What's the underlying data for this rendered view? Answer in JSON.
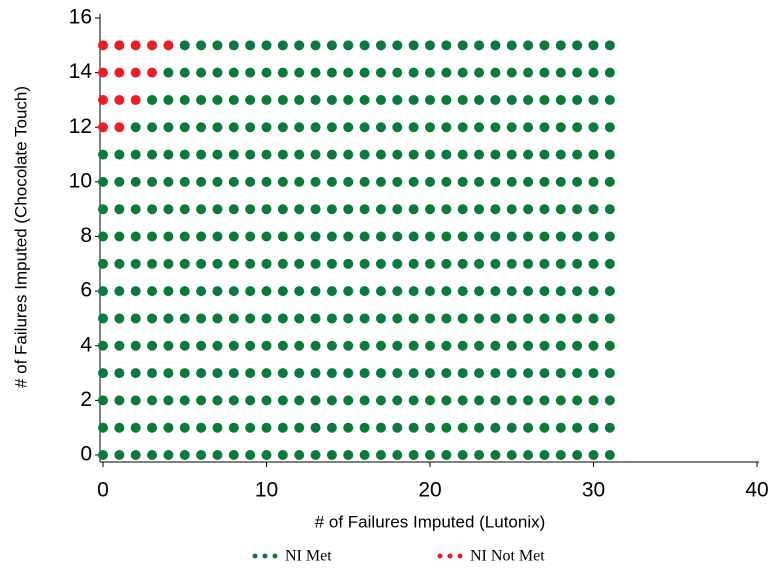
{
  "chart_data": {
    "type": "scatter",
    "x_label": "# of Failures Imputed (Lutonix)",
    "y_label": "# of Failures Imputed (Chocolate Touch)",
    "xlim": [
      0,
      40
    ],
    "xticks": [
      0,
      10,
      20,
      30,
      40
    ],
    "ylim": [
      0,
      16
    ],
    "yticks": [
      0,
      2,
      4,
      6,
      8,
      10,
      12,
      14,
      16
    ],
    "series": [
      {
        "name": "NI Met",
        "color": "#0a7a3c",
        "x": [
          0,
          1,
          2,
          3,
          4,
          5,
          6,
          7,
          8,
          9,
          10,
          11,
          12,
          13,
          14,
          15,
          16,
          17,
          18,
          19,
          20,
          21,
          22,
          23,
          24,
          25,
          26,
          27,
          28,
          29,
          30,
          31,
          0,
          1,
          2,
          3,
          4,
          5,
          6,
          7,
          8,
          9,
          10,
          11,
          12,
          13,
          14,
          15,
          16,
          17,
          18,
          19,
          20,
          21,
          22,
          23,
          24,
          25,
          26,
          27,
          28,
          29,
          30,
          31,
          0,
          1,
          2,
          3,
          4,
          5,
          6,
          7,
          8,
          9,
          10,
          11,
          12,
          13,
          14,
          15,
          16,
          17,
          18,
          19,
          20,
          21,
          22,
          23,
          24,
          25,
          26,
          27,
          28,
          29,
          30,
          31,
          0,
          1,
          2,
          3,
          4,
          5,
          6,
          7,
          8,
          9,
          10,
          11,
          12,
          13,
          14,
          15,
          16,
          17,
          18,
          19,
          20,
          21,
          22,
          23,
          24,
          25,
          26,
          27,
          28,
          29,
          30,
          31,
          0,
          1,
          2,
          3,
          4,
          5,
          6,
          7,
          8,
          9,
          10,
          11,
          12,
          13,
          14,
          15,
          16,
          17,
          18,
          19,
          20,
          21,
          22,
          23,
          24,
          25,
          26,
          27,
          28,
          29,
          30,
          31,
          0,
          1,
          2,
          3,
          4,
          5,
          6,
          7,
          8,
          9,
          10,
          11,
          12,
          13,
          14,
          15,
          16,
          17,
          18,
          19,
          20,
          21,
          22,
          23,
          24,
          25,
          26,
          27,
          28,
          29,
          30,
          31,
          0,
          1,
          2,
          3,
          4,
          5,
          6,
          7,
          8,
          9,
          10,
          11,
          12,
          13,
          14,
          15,
          16,
          17,
          18,
          19,
          20,
          21,
          22,
          23,
          24,
          25,
          26,
          27,
          28,
          29,
          30,
          31,
          0,
          1,
          2,
          3,
          4,
          5,
          6,
          7,
          8,
          9,
          10,
          11,
          12,
          13,
          14,
          15,
          16,
          17,
          18,
          19,
          20,
          21,
          22,
          23,
          24,
          25,
          26,
          27,
          28,
          29,
          30,
          31,
          0,
          1,
          2,
          3,
          4,
          5,
          6,
          7,
          8,
          9,
          10,
          11,
          12,
          13,
          14,
          15,
          16,
          17,
          18,
          19,
          20,
          21,
          22,
          23,
          24,
          25,
          26,
          27,
          28,
          29,
          30,
          31,
          0,
          1,
          2,
          3,
          4,
          5,
          6,
          7,
          8,
          9,
          10,
          11,
          12,
          13,
          14,
          15,
          16,
          17,
          18,
          19,
          20,
          21,
          22,
          23,
          24,
          25,
          26,
          27,
          28,
          29,
          30,
          31,
          0,
          1,
          2,
          3,
          4,
          5,
          6,
          7,
          8,
          9,
          10,
          11,
          12,
          13,
          14,
          15,
          16,
          17,
          18,
          19,
          20,
          21,
          22,
          23,
          24,
          25,
          26,
          27,
          28,
          29,
          30,
          31,
          0,
          1,
          2,
          3,
          4,
          5,
          6,
          7,
          8,
          9,
          10,
          11,
          12,
          13,
          14,
          15,
          16,
          17,
          18,
          19,
          20,
          21,
          22,
          23,
          24,
          25,
          26,
          27,
          28,
          29,
          30,
          31,
          2,
          3,
          4,
          5,
          6,
          7,
          8,
          9,
          10,
          11,
          12,
          13,
          14,
          15,
          16,
          17,
          18,
          19,
          20,
          21,
          22,
          23,
          24,
          25,
          26,
          27,
          28,
          29,
          30,
          31,
          3,
          4,
          5,
          6,
          7,
          8,
          9,
          10,
          11,
          12,
          13,
          14,
          15,
          16,
          17,
          18,
          19,
          20,
          21,
          22,
          23,
          24,
          25,
          26,
          27,
          28,
          29,
          30,
          31,
          4,
          5,
          6,
          7,
          8,
          9,
          10,
          11,
          12,
          13,
          14,
          15,
          16,
          17,
          18,
          19,
          20,
          21,
          22,
          23,
          24,
          25,
          26,
          27,
          28,
          29,
          30,
          31,
          5,
          6,
          7,
          8,
          9,
          10,
          11,
          12,
          13,
          14,
          15,
          16,
          17,
          18,
          19,
          20,
          21,
          22,
          23,
          24,
          25,
          26,
          27,
          28,
          29,
          30,
          31
        ],
        "y": [
          0,
          0,
          0,
          0,
          0,
          0,
          0,
          0,
          0,
          0,
          0,
          0,
          0,
          0,
          0,
          0,
          0,
          0,
          0,
          0,
          0,
          0,
          0,
          0,
          0,
          0,
          0,
          0,
          0,
          0,
          0,
          0,
          1,
          1,
          1,
          1,
          1,
          1,
          1,
          1,
          1,
          1,
          1,
          1,
          1,
          1,
          1,
          1,
          1,
          1,
          1,
          1,
          1,
          1,
          1,
          1,
          1,
          1,
          1,
          1,
          1,
          1,
          1,
          1,
          2,
          2,
          2,
          2,
          2,
          2,
          2,
          2,
          2,
          2,
          2,
          2,
          2,
          2,
          2,
          2,
          2,
          2,
          2,
          2,
          2,
          2,
          2,
          2,
          2,
          2,
          2,
          2,
          2,
          2,
          2,
          2,
          3,
          3,
          3,
          3,
          3,
          3,
          3,
          3,
          3,
          3,
          3,
          3,
          3,
          3,
          3,
          3,
          3,
          3,
          3,
          3,
          3,
          3,
          3,
          3,
          3,
          3,
          3,
          3,
          3,
          3,
          3,
          3,
          4,
          4,
          4,
          4,
          4,
          4,
          4,
          4,
          4,
          4,
          4,
          4,
          4,
          4,
          4,
          4,
          4,
          4,
          4,
          4,
          4,
          4,
          4,
          4,
          4,
          4,
          4,
          4,
          4,
          4,
          4,
          4,
          5,
          5,
          5,
          5,
          5,
          5,
          5,
          5,
          5,
          5,
          5,
          5,
          5,
          5,
          5,
          5,
          5,
          5,
          5,
          5,
          5,
          5,
          5,
          5,
          5,
          5,
          5,
          5,
          5,
          5,
          5,
          5,
          6,
          6,
          6,
          6,
          6,
          6,
          6,
          6,
          6,
          6,
          6,
          6,
          6,
          6,
          6,
          6,
          6,
          6,
          6,
          6,
          6,
          6,
          6,
          6,
          6,
          6,
          6,
          6,
          6,
          6,
          6,
          6,
          7,
          7,
          7,
          7,
          7,
          7,
          7,
          7,
          7,
          7,
          7,
          7,
          7,
          7,
          7,
          7,
          7,
          7,
          7,
          7,
          7,
          7,
          7,
          7,
          7,
          7,
          7,
          7,
          7,
          7,
          7,
          7,
          8,
          8,
          8,
          8,
          8,
          8,
          8,
          8,
          8,
          8,
          8,
          8,
          8,
          8,
          8,
          8,
          8,
          8,
          8,
          8,
          8,
          8,
          8,
          8,
          8,
          8,
          8,
          8,
          8,
          8,
          8,
          8,
          9,
          9,
          9,
          9,
          9,
          9,
          9,
          9,
          9,
          9,
          9,
          9,
          9,
          9,
          9,
          9,
          9,
          9,
          9,
          9,
          9,
          9,
          9,
          9,
          9,
          9,
          9,
          9,
          9,
          9,
          9,
          9,
          10,
          10,
          10,
          10,
          10,
          10,
          10,
          10,
          10,
          10,
          10,
          10,
          10,
          10,
          10,
          10,
          10,
          10,
          10,
          10,
          10,
          10,
          10,
          10,
          10,
          10,
          10,
          10,
          10,
          10,
          10,
          10,
          11,
          11,
          11,
          11,
          11,
          11,
          11,
          11,
          11,
          11,
          11,
          11,
          11,
          11,
          11,
          11,
          11,
          11,
          11,
          11,
          11,
          11,
          11,
          11,
          11,
          11,
          11,
          11,
          11,
          11,
          11,
          11,
          12,
          12,
          12,
          12,
          12,
          12,
          12,
          12,
          12,
          12,
          12,
          12,
          12,
          12,
          12,
          12,
          12,
          12,
          12,
          12,
          12,
          12,
          12,
          12,
          12,
          12,
          12,
          12,
          12,
          12,
          13,
          13,
          13,
          13,
          13,
          13,
          13,
          13,
          13,
          13,
          13,
          13,
          13,
          13,
          13,
          13,
          13,
          13,
          13,
          13,
          13,
          13,
          13,
          13,
          13,
          13,
          13,
          13,
          13,
          14,
          14,
          14,
          14,
          14,
          14,
          14,
          14,
          14,
          14,
          14,
          14,
          14,
          14,
          14,
          14,
          14,
          14,
          14,
          14,
          14,
          14,
          14,
          14,
          14,
          14,
          14,
          14,
          15,
          15,
          15,
          15,
          15,
          15,
          15,
          15,
          15,
          15,
          15,
          15,
          15,
          15,
          15,
          15,
          15,
          15,
          15,
          15,
          15,
          15,
          15,
          15,
          15,
          15,
          15
        ]
      },
      {
        "name": "NI Not Met",
        "color": "#ee1c25",
        "x": [
          0,
          1,
          2,
          3,
          4,
          0,
          1,
          2,
          3,
          0,
          1,
          2,
          0,
          1
        ],
        "y": [
          15,
          15,
          15,
          15,
          15,
          14,
          14,
          14,
          14,
          13,
          13,
          13,
          12,
          12
        ]
      }
    ]
  }
}
